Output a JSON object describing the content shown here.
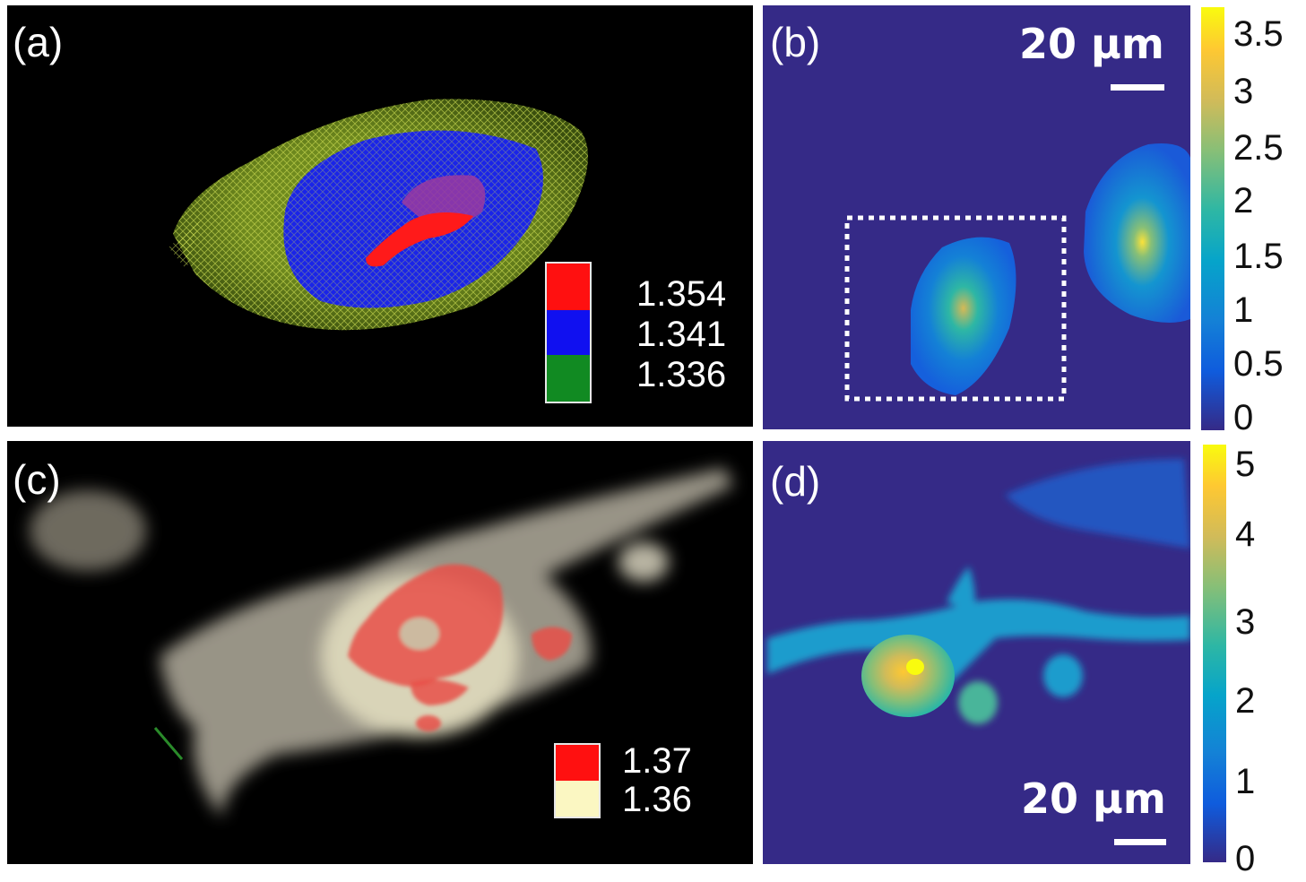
{
  "panels": {
    "a": {
      "label": "(a)",
      "legend": [
        {
          "value": "1.354",
          "color": "#ff1010"
        },
        {
          "value": "1.341",
          "color": "#1010f0"
        },
        {
          "value": "1.336",
          "color": "#118a22"
        }
      ]
    },
    "b": {
      "label": "(b)",
      "scale_label": "20 μm",
      "colorbar_ticks": [
        "3.5",
        "3",
        "2.5",
        "2",
        "1.5",
        "1",
        "0.5",
        "0"
      ]
    },
    "c": {
      "label": "(c)",
      "legend": [
        {
          "value": "1.37",
          "color": "#ff1010"
        },
        {
          "value": "1.36",
          "color": "#fbf7c2"
        }
      ]
    },
    "d": {
      "label": "(d)",
      "scale_label": "20 μm",
      "colorbar_ticks": [
        "5",
        "4",
        "3",
        "2",
        "1",
        "0"
      ]
    }
  },
  "colors": {
    "background_dark": "#000000",
    "map_background": "#352a87",
    "parula": [
      "#352a87",
      "#0f5cdd",
      "#1481d6",
      "#06a4ca",
      "#2eb7a4",
      "#87bf77",
      "#d1bb59",
      "#fec832",
      "#f9fb0e"
    ]
  }
}
